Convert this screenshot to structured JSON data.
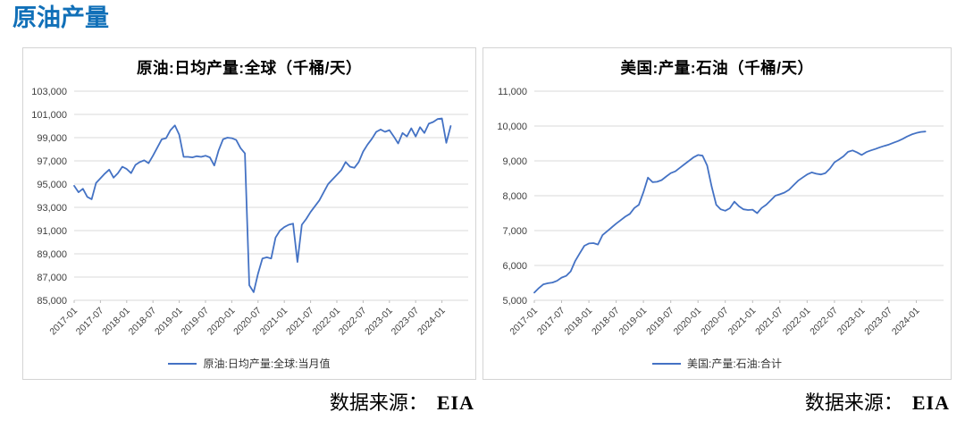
{
  "page": {
    "title": "原油产量",
    "title_color": "#1170b8",
    "background": "#ffffff"
  },
  "chart_data": [
    {
      "type": "line",
      "title": "原油:日均产量:全球（千桶/天）",
      "legend": "原油:日均产量:全球:当月值",
      "line_color": "#4472c4",
      "grid_color": "#d9d9d9",
      "ylim": [
        85000,
        103000
      ],
      "ytick_step": 2000,
      "x_start": "2017-01",
      "x_interval": "monthly",
      "x_span_months": 90,
      "x_tick_labels": [
        "2017-01",
        "2017-07",
        "2018-01",
        "2018-07",
        "2019-01",
        "2019-07",
        "2020-01",
        "2020-07",
        "2021-01",
        "2021-07",
        "2022-01",
        "2022-07",
        "2023-01",
        "2023-07",
        "2024-01"
      ],
      "values": [
        94850,
        94300,
        94600,
        93900,
        93700,
        95100,
        95500,
        95900,
        96250,
        95550,
        95950,
        96500,
        96300,
        95950,
        96650,
        96900,
        97050,
        96800,
        97450,
        98150,
        98850,
        98950,
        99650,
        100050,
        99250,
        97350,
        97350,
        97300,
        97400,
        97350,
        97450,
        97300,
        96600,
        97900,
        98850,
        99000,
        98950,
        98800,
        98100,
        97650,
        86300,
        85700,
        87300,
        88600,
        88700,
        88600,
        90400,
        91000,
        91300,
        91500,
        91600,
        88300,
        91500,
        92000,
        92600,
        93100,
        93600,
        94300,
        95000,
        95400,
        95800,
        96200,
        96900,
        96500,
        96400,
        96900,
        97800,
        98400,
        98900,
        99500,
        99700,
        99500,
        99650,
        99100,
        98500,
        99400,
        99100,
        99800,
        99100,
        99900,
        99400,
        100200,
        100350,
        100600,
        100650,
        98550,
        100000
      ]
    },
    {
      "type": "line",
      "title": "美国:产量:石油（千桶/天）",
      "legend": "美国:产量:石油:合计",
      "line_color": "#4472c4",
      "grid_color": "#d9d9d9",
      "ylim": [
        5000,
        11000
      ],
      "ytick_step": 1000,
      "x_start": "2017-01",
      "x_interval": "monthly",
      "x_span_months": 90,
      "x_tick_labels": [
        "2017-01",
        "2017-07",
        "2018-01",
        "2018-07",
        "2019-01",
        "2019-07",
        "2020-01",
        "2020-07",
        "2021-01",
        "2021-07",
        "2022-01",
        "2022-07",
        "2023-01",
        "2023-07",
        "2024-01"
      ],
      "values": [
        5220,
        5350,
        5460,
        5490,
        5510,
        5560,
        5650,
        5700,
        5830,
        6130,
        6350,
        6565,
        6630,
        6640,
        6600,
        6870,
        6980,
        7090,
        7200,
        7300,
        7400,
        7480,
        7650,
        7740,
        8100,
        8520,
        8390,
        8400,
        8450,
        8550,
        8650,
        8700,
        8800,
        8900,
        9000,
        9100,
        9170,
        9150,
        8870,
        8260,
        7740,
        7610,
        7570,
        7640,
        7830,
        7700,
        7610,
        7590,
        7600,
        7500,
        7650,
        7740,
        7870,
        8000,
        8040,
        8090,
        8170,
        8300,
        8430,
        8520,
        8610,
        8670,
        8630,
        8610,
        8650,
        8780,
        8960,
        9040,
        9130,
        9260,
        9300,
        9240,
        9170,
        9250,
        9300,
        9340,
        9390,
        9430,
        9470,
        9520,
        9570,
        9630,
        9700,
        9760,
        9800,
        9830,
        9840
      ]
    }
  ],
  "sources": [
    {
      "label": "数据来源：",
      "value": "EIA"
    },
    {
      "label": "数据来源：",
      "value": "EIA"
    }
  ]
}
